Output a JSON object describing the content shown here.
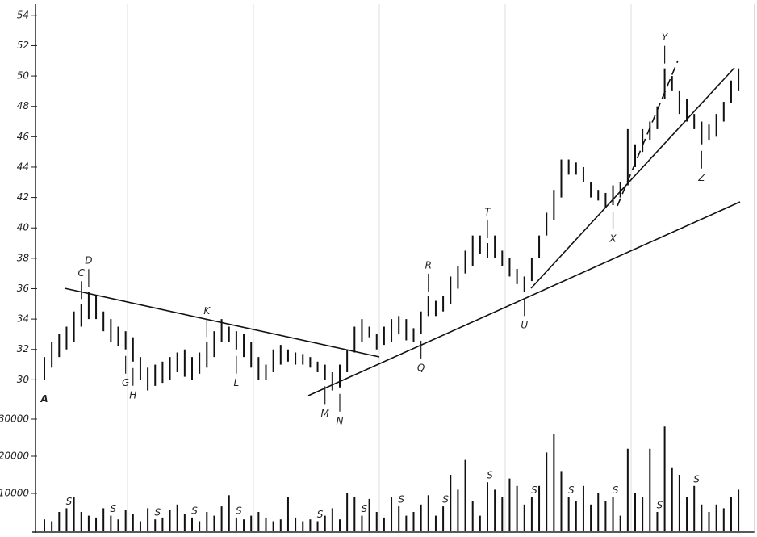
{
  "chart_data": [
    {
      "type": "ohlc",
      "high": [
        31.5,
        32.5,
        33,
        33.5,
        34.5,
        35,
        35.8,
        35.5,
        34.5,
        34,
        33.5,
        33.2,
        32.8,
        31.5,
        30.8,
        31,
        31.2,
        31.5,
        31.8,
        32,
        31.5,
        31.8,
        32.5,
        33.2,
        34,
        33.5,
        33.2,
        33,
        32.5,
        31.5,
        31,
        32,
        32.3,
        32,
        31.8,
        31.7,
        31.5,
        31.2,
        31,
        30.5,
        31,
        32,
        33.5,
        34,
        33.5,
        33,
        33.5,
        34,
        34.2,
        34,
        33.4,
        34.5,
        35.5,
        35.2,
        35.5,
        36.8,
        37.5,
        38.5,
        39.5,
        39.5,
        39,
        39.5,
        38.5,
        38,
        37.3,
        36.8,
        38,
        39.5,
        41,
        42.5,
        44.5,
        44.5,
        44.3,
        44,
        43,
        42.5,
        42.3,
        42.8,
        43,
        46.5,
        45.5,
        46.5,
        47,
        48,
        50.5,
        50,
        49,
        48.5,
        47.5,
        47,
        46.8,
        47.5,
        48.3,
        49.7,
        50.5
      ],
      "low": [
        30,
        30.8,
        31.5,
        32,
        32.5,
        33.5,
        34,
        34,
        33.2,
        32.5,
        32.2,
        32,
        31.2,
        30,
        29.3,
        29.6,
        29.8,
        30,
        30.5,
        30.2,
        30,
        30.4,
        30.8,
        31.5,
        32.5,
        32.5,
        32,
        31.5,
        30.8,
        30,
        30,
        30.5,
        31,
        31.2,
        31,
        31,
        30.8,
        30.5,
        30,
        29.3,
        29.5,
        30.5,
        31.8,
        32.5,
        32.8,
        32,
        32.3,
        32.5,
        33,
        32.6,
        32.5,
        33,
        34.2,
        34.2,
        34.5,
        35,
        36,
        37,
        37.5,
        38.3,
        38,
        38,
        37.5,
        36.8,
        36.3,
        35.8,
        36.5,
        38,
        39.5,
        40.5,
        42,
        43.5,
        43.5,
        43,
        42,
        41.8,
        41.3,
        41.5,
        42,
        42.8,
        44,
        45,
        45.8,
        46.5,
        48.5,
        49,
        47.5,
        47,
        46.5,
        45.5,
        45.8,
        46,
        47,
        48.2,
        49
      ],
      "ylim": [
        28,
        55
      ],
      "yticks": [
        30,
        32,
        34,
        36,
        38,
        40,
        42,
        44,
        46,
        48,
        50,
        52,
        54
      ],
      "annotations": [
        {
          "text": "A",
          "bar": 0,
          "side": "below"
        },
        {
          "text": "C",
          "bar": 5,
          "side": "above"
        },
        {
          "text": "D",
          "bar": 6,
          "side": "above"
        },
        {
          "text": "G",
          "bar": 11,
          "side": "below"
        },
        {
          "text": "H",
          "bar": 12,
          "side": "below"
        },
        {
          "text": "K",
          "bar": 22,
          "side": "above"
        },
        {
          "text": "L",
          "bar": 26,
          "side": "below"
        },
        {
          "text": "M",
          "bar": 38,
          "side": "below"
        },
        {
          "text": "N",
          "bar": 40,
          "side": "below"
        },
        {
          "text": "Q",
          "bar": 51,
          "side": "below"
        },
        {
          "text": "R",
          "bar": 52,
          "side": "above"
        },
        {
          "text": "T",
          "bar": 60,
          "side": "above"
        },
        {
          "text": "U",
          "bar": 65,
          "side": "below"
        },
        {
          "text": "X",
          "bar": 77,
          "side": "below"
        },
        {
          "text": "Y",
          "bar": 84,
          "side": "above"
        },
        {
          "text": "Z",
          "bar": 89,
          "side": "below"
        }
      ]
    },
    {
      "type": "bar",
      "values": [
        3000,
        2500,
        5000,
        6000,
        9000,
        5000,
        4000,
        3500,
        6000,
        4000,
        3000,
        5500,
        4500,
        2500,
        6000,
        3000,
        3500,
        5500,
        7000,
        4500,
        3500,
        2500,
        5000,
        4000,
        6500,
        9500,
        3500,
        3000,
        4000,
        5000,
        3500,
        2500,
        3000,
        9000,
        3500,
        2500,
        3000,
        2500,
        4000,
        6000,
        3000,
        10000,
        9000,
        4000,
        8500,
        5000,
        3500,
        9000,
        6500,
        4000,
        5000,
        7000,
        9500,
        4000,
        6500,
        15000,
        11000,
        19000,
        8000,
        4000,
        13000,
        11000,
        9000,
        14000,
        12000,
        7000,
        9000,
        12000,
        21000,
        26000,
        16000,
        9000,
        8000,
        12000,
        7000,
        10000,
        8000,
        9000,
        4000,
        22000,
        10000,
        9000,
        22000,
        5000,
        28000,
        17000,
        15000,
        9000,
        12000,
        7000,
        5000,
        7000,
        6000,
        9000,
        11000
      ],
      "ylim": [
        0,
        35000
      ],
      "yticks": [
        10000,
        20000,
        30000
      ],
      "annotations": [
        {
          "text": "S",
          "bar": 3
        },
        {
          "text": "S",
          "bar": 9
        },
        {
          "text": "S",
          "bar": 15
        },
        {
          "text": "S",
          "bar": 20
        },
        {
          "text": "S",
          "bar": 26
        },
        {
          "text": "S",
          "bar": 37
        },
        {
          "text": "S",
          "bar": 43
        },
        {
          "text": "S",
          "bar": 48
        },
        {
          "text": "S",
          "bar": 54
        },
        {
          "text": "S",
          "bar": 60
        },
        {
          "text": "S",
          "bar": 66
        },
        {
          "text": "S",
          "bar": 71
        },
        {
          "text": "S",
          "bar": 77
        },
        {
          "text": "S",
          "bar": 83
        },
        {
          "text": "S",
          "bar": 88
        }
      ]
    }
  ]
}
